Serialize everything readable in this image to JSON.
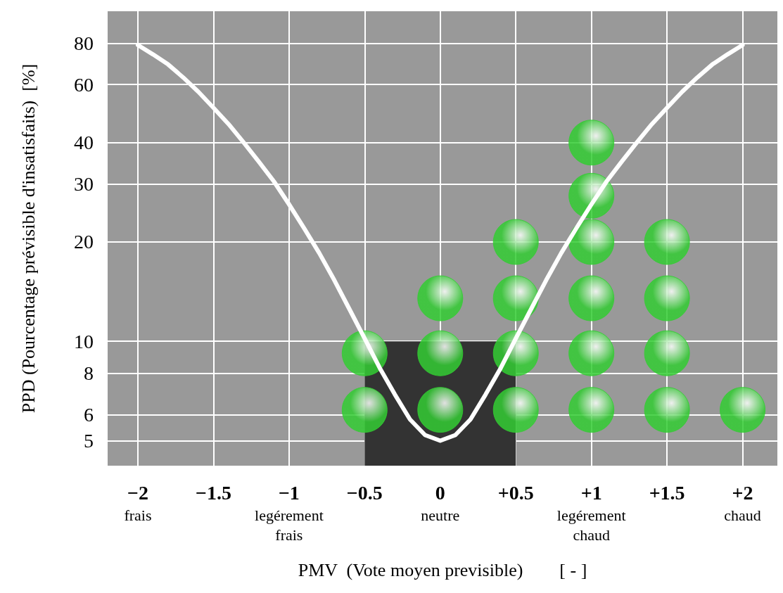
{
  "chart_data": {
    "type": "line",
    "xlabel": "PMV  (Vote moyen previsible)        [ - ]",
    "ylabel": "PPD (Pourcentage prévisible d'insatisfaits)  [%]",
    "log": "y",
    "grid": true,
    "marker": "none",
    "xlim": [
      -2.2,
      2.23
    ],
    "ylim": [
      4.2,
      100
    ],
    "xticks": [
      {
        "value": -2,
        "label": "−2\nfrais"
      },
      {
        "value": -1.5,
        "label": "−1.5"
      },
      {
        "value": -1,
        "label": "−1\nlegérement\nfrais"
      },
      {
        "value": -0.5,
        "label": "−0.5"
      },
      {
        "value": 0,
        "label": "0\nneutre"
      },
      {
        "value": 0.5,
        "label": "+0.5"
      },
      {
        "value": 1,
        "label": "+1\nlegérement\nchaud"
      },
      {
        "value": 1.5,
        "label": "+1.5"
      },
      {
        "value": 2,
        "label": "+2\nchaud"
      }
    ],
    "yticks": [
      5,
      6,
      8,
      10,
      20,
      30,
      40,
      60,
      80
    ],
    "series": [
      {
        "type": "area",
        "color": "#333333",
        "x": [
          -0.5,
          0.5
        ],
        "values": [
          10,
          10
        ]
      },
      {
        "type": "line",
        "color": "#ffffff",
        "x": [
          -2,
          -1.9,
          -1.8,
          -1.7,
          -1.6,
          -1.5,
          -1.4,
          -1.3,
          -1.2,
          -1.1,
          -1,
          -0.9,
          -0.8,
          -0.7,
          -0.6,
          -0.5,
          -0.4,
          -0.3,
          -0.2,
          -0.1,
          0,
          0.1,
          0.2,
          0.3,
          0.4,
          0.5,
          0.6,
          0.7,
          0.8,
          0.9,
          1,
          1.1,
          1.2,
          1.3,
          1.4,
          1.5,
          1.6,
          1.7,
          1.8,
          1.9,
          2
        ],
        "values": [
          79,
          74,
          69,
          63,
          57,
          51,
          45.5,
          40,
          35,
          30.5,
          26,
          22,
          18.5,
          15.3,
          12.5,
          10.2,
          8.3,
          6.9,
          5.8,
          5.2,
          5,
          5.2,
          5.8,
          6.9,
          8.3,
          10.2,
          12.5,
          15.3,
          18.5,
          22,
          26,
          30.5,
          35,
          40,
          45.5,
          51,
          57,
          63,
          69,
          74,
          79
        ]
      },
      {
        "type": "scatter",
        "marker": "circle",
        "color": "#33cc33",
        "x": [
          -0.5,
          -0.5,
          0,
          0,
          0,
          0.5,
          0.5,
          0.5,
          0.5,
          1,
          1,
          1,
          1,
          1,
          1,
          1.5,
          1.5,
          1.5,
          1.5,
          2
        ],
        "values": [
          6.2,
          9.2,
          6.2,
          9.2,
          13.5,
          6.2,
          9.2,
          13.5,
          20,
          6.2,
          9.2,
          13.5,
          20,
          27.6,
          40,
          6.2,
          9.2,
          13.5,
          20,
          6.2
        ]
      }
    ]
  }
}
